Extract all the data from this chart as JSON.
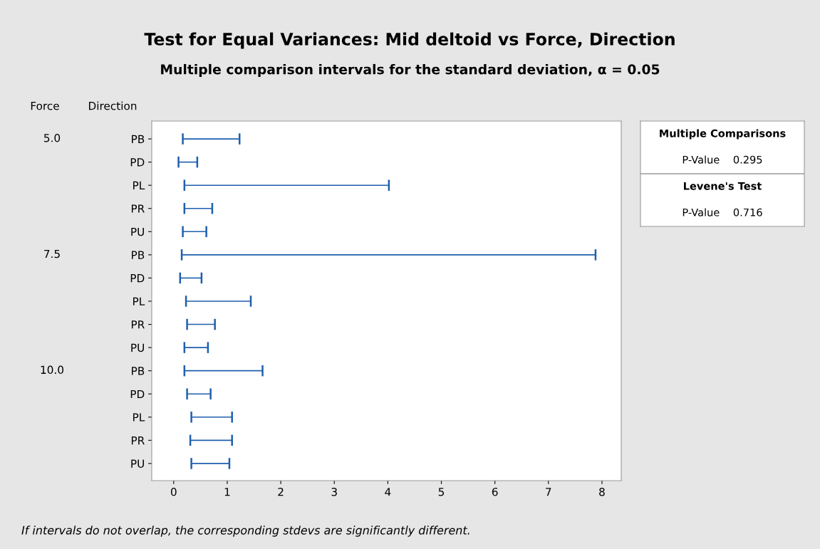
{
  "chart_data": {
    "type": "bar",
    "orientation": "horizontal",
    "title": "Test for Equal Variances: Mid deltoid vs Force, Direction",
    "subtitle": "Multiple comparison intervals for the standard deviation, α = 0.05",
    "categories": [
      "PB",
      "PD",
      "PL",
      "PR",
      "PU",
      "PB",
      "PD",
      "PL",
      "PR",
      "PU",
      "PB",
      "PD",
      "PL",
      "PR",
      "PU"
    ],
    "base": [
      0.17,
      0.09,
      0.2,
      0.2,
      0.17,
      0.15,
      0.12,
      0.23,
      0.25,
      0.2,
      0.2,
      0.25,
      0.33,
      0.31,
      0.33
    ],
    "values": [
      1.06,
      0.35,
      3.82,
      0.52,
      0.44,
      7.73,
      0.4,
      1.21,
      0.52,
      0.44,
      1.46,
      0.44,
      0.76,
      0.78,
      0.71
    ],
    "color": "#1f5fae",
    "xlim": [
      -0.41,
      8.36
    ],
    "xticks": [
      0,
      1,
      2,
      3,
      4,
      5,
      6,
      7,
      8
    ],
    "grid": false,
    "annotations": [
      "Force",
      "Direction",
      "5.0",
      "7.5",
      "10.0",
      "Multiple Comparisons",
      "P-Value    0.295",
      "Levene's Test",
      "P-Value    0.716",
      "If intervals do not overlap, the corresponding stdevs are significantly different."
    ]
  }
}
